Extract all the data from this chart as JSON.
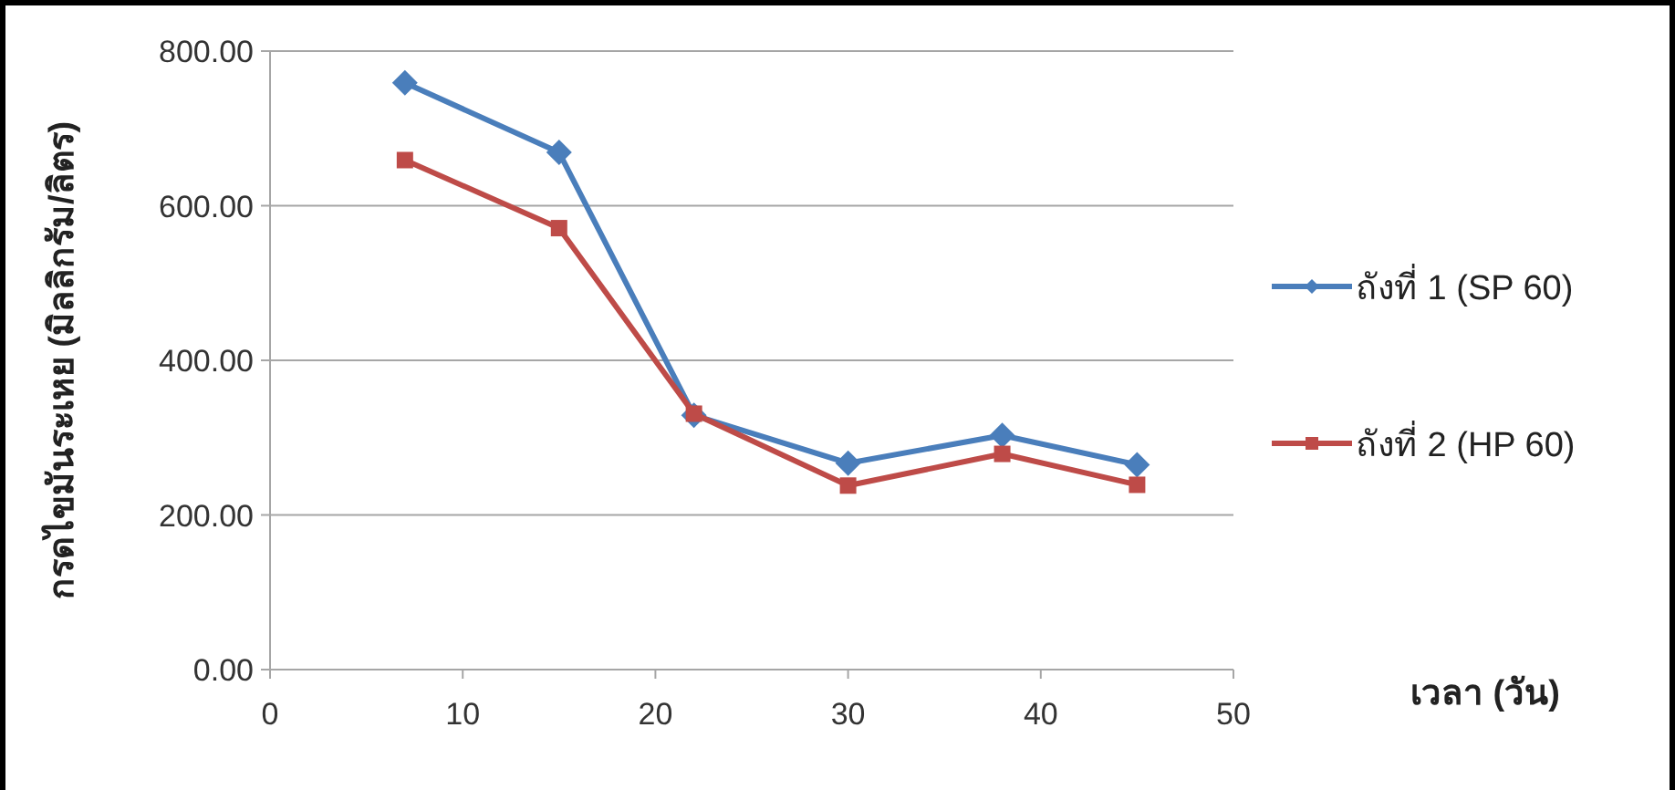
{
  "chart_data": {
    "type": "line",
    "xlabel": "เวลา (วัน)",
    "ylabel": "กรดไขมันระเหย (มิลลิกรัม/ลิตร)",
    "xlim": [
      0,
      50
    ],
    "xticks": [
      0,
      10,
      20,
      30,
      40,
      50
    ],
    "ylim": [
      0,
      800
    ],
    "yticks": [
      {
        "value": 0,
        "label": "0.00"
      },
      {
        "value": 200,
        "label": "200.00"
      },
      {
        "value": 400,
        "label": "400.00"
      },
      {
        "value": 600,
        "label": "600.00"
      },
      {
        "value": 800,
        "label": "800.00"
      }
    ],
    "grid": "y",
    "legend": "right",
    "line_style": "solid",
    "series": [
      {
        "name": "ถังที่ 1 (SP 60)",
        "color": "#4a7ebb",
        "marker": "diamond",
        "x": [
          7,
          15,
          22,
          30,
          38,
          45
        ],
        "values": [
          759,
          669,
          329,
          267,
          303,
          265
        ]
      },
      {
        "name": "ถังที่ 2 (HP 60)",
        "color": "#be4b48",
        "marker": "square",
        "x": [
          7,
          15,
          22,
          30,
          38,
          45
        ],
        "values": [
          659,
          571,
          331,
          238,
          279,
          239
        ]
      }
    ]
  }
}
